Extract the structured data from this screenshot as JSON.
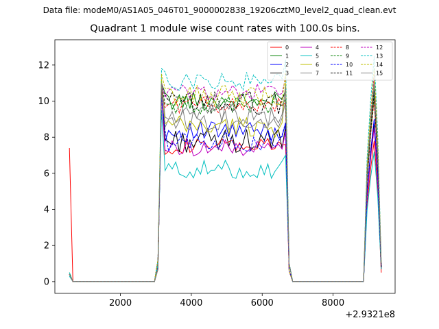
{
  "figure": {
    "suptitle": "Data file: modeM0/AS1A05_046T01_9000002838_19206cztM0_level2_quad_clean.evt",
    "offset_text": "+2.9321e8"
  },
  "chart_data": {
    "type": "line",
    "title": "Quadrant 1 module wise count rates with 100.0s bins.",
    "xlabel": "",
    "ylabel": "",
    "x_offset": 293210000,
    "xlim": [
      150,
      9750
    ],
    "ylim": [
      -0.65,
      13.4
    ],
    "x_ticks": [
      2000,
      4000,
      6000,
      8000
    ],
    "y_ticks": [
      0,
      2,
      4,
      6,
      8,
      10,
      12
    ],
    "grid": false,
    "legend_placement": "top-right",
    "legend_columns": 4,
    "x_segments": [
      {
        "x0": 560,
        "x1": 2960
      },
      {
        "x0": 3060,
        "x1": 6760
      },
      {
        "x0": 8860,
        "x1": 9260
      }
    ],
    "series": [
      {
        "name": "0",
        "color": "#ff0000",
        "dash": "solid",
        "levels": [
          7.4,
          0.0,
          10.8,
          7.5,
          7.8,
          0.5
        ]
      },
      {
        "name": "1",
        "color": "#008000",
        "dash": "solid",
        "levels": [
          0.5,
          0.0,
          11.0,
          10.0,
          10.8,
          0.9
        ]
      },
      {
        "name": "2",
        "color": "#0000ff",
        "dash": "solid",
        "levels": [
          0.4,
          0.0,
          10.5,
          8.3,
          9.0,
          0.8
        ]
      },
      {
        "name": "3",
        "color": "#000000",
        "dash": "solid",
        "levels": [
          0.4,
          0.0,
          10.6,
          7.8,
          8.8,
          0.7
        ]
      },
      {
        "name": "4",
        "color": "#bf00bf",
        "dash": "solid",
        "levels": [
          0.4,
          0.0,
          10.3,
          7.4,
          8.5,
          0.9
        ]
      },
      {
        "name": "5",
        "color": "#00bfbf",
        "dash": "solid",
        "levels": [
          0.3,
          0.0,
          9.5,
          6.2,
          7.2,
          0.7
        ]
      },
      {
        "name": "6",
        "color": "#bfbf00",
        "dash": "solid",
        "levels": [
          0.4,
          0.0,
          11.2,
          8.6,
          11.2,
          1.0
        ]
      },
      {
        "name": "7",
        "color": "#808080",
        "dash": "solid",
        "levels": [
          0.4,
          0.0,
          10.4,
          9.0,
          10.2,
          0.8
        ]
      },
      {
        "name": "8",
        "color": "#ff0000",
        "dash": "dashed",
        "levels": [
          0.4,
          0.0,
          10.6,
          9.8,
          10.1,
          0.8
        ]
      },
      {
        "name": "9",
        "color": "#008000",
        "dash": "dashed",
        "levels": [
          0.4,
          0.0,
          10.9,
          9.8,
          10.3,
          0.9
        ]
      },
      {
        "name": "10",
        "color": "#0000ff",
        "dash": "dashed",
        "levels": [
          0.4,
          0.0,
          10.2,
          7.8,
          9.0,
          0.8
        ]
      },
      {
        "name": "11",
        "color": "#000000",
        "dash": "dashed",
        "levels": [
          0.4,
          0.0,
          10.8,
          9.9,
          10.6,
          0.8
        ]
      },
      {
        "name": "12",
        "color": "#bf00bf",
        "dash": "dashed",
        "levels": [
          0.4,
          0.0,
          11.0,
          10.5,
          11.5,
          1.0
        ]
      },
      {
        "name": "13",
        "color": "#00bfbf",
        "dash": "dashed",
        "levels": [
          0.5,
          0.0,
          11.8,
          11.1,
          12.5,
          1.1
        ]
      },
      {
        "name": "14",
        "color": "#bfbf00",
        "dash": "dashed",
        "levels": [
          0.4,
          0.0,
          11.5,
          10.3,
          11.8,
          1.0
        ]
      },
      {
        "name": "15",
        "color": "#808080",
        "dash": "solid",
        "levels": [
          0.4,
          0.0,
          11.0,
          9.2,
          11.0,
          1.0
        ]
      }
    ]
  }
}
